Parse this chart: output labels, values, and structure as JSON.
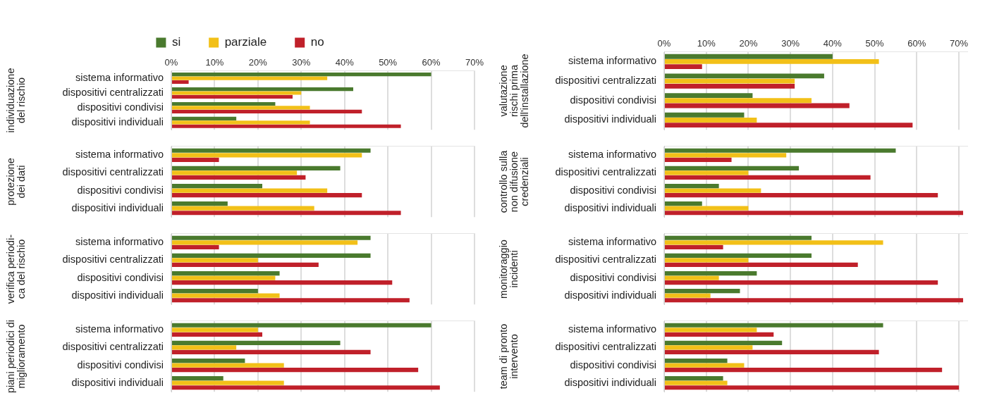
{
  "chart_data": [
    {
      "type": "bar",
      "orientation": "horizontal",
      "ylabel": "individuazione\ndel rischio",
      "categories": [
        "sistema informativo",
        "dispositivi centralizzati",
        "dispositivi condivisi",
        "dispositivi individuali"
      ],
      "series": [
        {
          "name": "si",
          "color": "#4a7a2e",
          "values": [
            60,
            42,
            24,
            15
          ]
        },
        {
          "name": "parziale",
          "color": "#f2c018",
          "values": [
            36,
            30,
            32,
            32
          ]
        },
        {
          "name": "no",
          "color": "#c0202a",
          "values": [
            4,
            28,
            44,
            53
          ]
        }
      ],
      "xlim": [
        0,
        70
      ],
      "xticks": [
        {
          "value": 0,
          "label": "0%"
        },
        {
          "value": 10,
          "label": "10%"
        },
        {
          "value": 20,
          "label": "20%"
        },
        {
          "value": 30,
          "label": "30%"
        },
        {
          "value": 40,
          "label": "40%"
        },
        {
          "value": 50,
          "label": "50%"
        },
        {
          "value": 60,
          "label": "60%"
        },
        {
          "value": 70,
          "label": "70%"
        }
      ],
      "grid": "x",
      "legend": "top"
    },
    {
      "type": "bar",
      "orientation": "horizontal",
      "ylabel": "protezione\ndei dati",
      "categories": [
        "sistema informativo",
        "dispositivi centralizzati",
        "dispositivi condivisi",
        "dispositivi individuali"
      ],
      "series": [
        {
          "color": "#4a7a2e",
          "values": [
            46,
            39,
            21,
            13
          ]
        },
        {
          "color": "#f2c018",
          "values": [
            44,
            29,
            36,
            33
          ]
        },
        {
          "color": "#c0202a",
          "values": [
            11,
            31,
            44,
            53
          ]
        }
      ],
      "xlim": [
        0,
        70
      ],
      "xticks": [
        0,
        10,
        20,
        30,
        40,
        50,
        60,
        70
      ],
      "grid": "x",
      "tick_labels": "y"
    },
    {
      "type": "bar",
      "orientation": "horizontal",
      "ylabel": "verifica periodi-\nca del rischio",
      "categories": [
        "sistema informativo",
        "dispositivi centralizzati",
        "dispositivi condivisi",
        "dispositivi individuali"
      ],
      "series": [
        {
          "color": "#4a7a2e",
          "values": [
            46,
            46,
            25,
            20
          ]
        },
        {
          "color": "#f2c018",
          "values": [
            43,
            20,
            24,
            25
          ]
        },
        {
          "color": "#c0202a",
          "values": [
            11,
            34,
            51,
            55
          ]
        }
      ],
      "xlim": [
        0,
        70
      ],
      "xticks": [
        0,
        10,
        20,
        30,
        40,
        50,
        60,
        70
      ],
      "grid": "x",
      "tick_labels": "y"
    },
    {
      "type": "bar",
      "orientation": "horizontal",
      "ylabel": "piani periodici di\nmiglioramento",
      "categories": [
        "sistema informativo",
        "dispositivi centralizzati",
        "dispositivi condivisi",
        "dispositivi individuali"
      ],
      "series": [
        {
          "color": "#4a7a2e",
          "values": [
            60,
            39,
            17,
            12
          ]
        },
        {
          "color": "#f2c018",
          "values": [
            20,
            15,
            26,
            26
          ]
        },
        {
          "color": "#c0202a",
          "values": [
            21,
            46,
            57,
            62
          ]
        }
      ],
      "xlim": [
        0,
        70
      ],
      "xticks": [
        0,
        10,
        20,
        30,
        40,
        50,
        60,
        70
      ],
      "grid": "x",
      "tick_labels": "y"
    },
    {
      "type": "bar",
      "orientation": "horizontal",
      "ylabel": "valutazione\nrischi prima\ndell'installazione",
      "categories": [
        "sistema informativo",
        "dispositivi centralizzati",
        "dispositivi condivisi",
        "dispositivi individuali"
      ],
      "series": [
        {
          "color": "#4a7a2e",
          "values": [
            40,
            38,
            21,
            19
          ]
        },
        {
          "color": "#f2c018",
          "values": [
            51,
            31,
            35,
            22
          ]
        },
        {
          "color": "#c0202a",
          "values": [
            9,
            31,
            44,
            59
          ]
        }
      ],
      "xlim": [
        0,
        72
      ],
      "xticks": [
        {
          "value": 0,
          "label": "0%"
        },
        {
          "value": 10,
          "label": "10%"
        },
        {
          "value": 20,
          "label": "20%"
        },
        {
          "value": 30,
          "label": "30%"
        },
        {
          "value": 40,
          "label": "40%"
        },
        {
          "value": 50,
          "label": "50%"
        },
        {
          "value": 60,
          "label": "60%"
        },
        {
          "value": 70,
          "label": "70%"
        }
      ],
      "grid": "x"
    },
    {
      "type": "bar",
      "orientation": "horizontal",
      "ylabel": "controllo sulla\nnon difusione\ncredenziali",
      "categories": [
        "sistema informativo",
        "dispositivi centralizzati",
        "dispositivi condivisi",
        "dispositivi individuali"
      ],
      "series": [
        {
          "color": "#4a7a2e",
          "values": [
            55,
            32,
            13,
            9
          ]
        },
        {
          "color": "#f2c018",
          "values": [
            29,
            20,
            23,
            20
          ]
        },
        {
          "color": "#c0202a",
          "values": [
            16,
            49,
            65,
            71
          ]
        }
      ],
      "xlim": [
        0,
        72
      ],
      "xticks": [
        0,
        10,
        20,
        30,
        40,
        50,
        60,
        70
      ],
      "grid": "x",
      "tick_labels": "y"
    },
    {
      "type": "bar",
      "orientation": "horizontal",
      "ylabel": "monitoraggio\nincidenti",
      "categories": [
        "sistema informativo",
        "dispositivi centralizzati",
        "dispositivi condivisi",
        "dispositivi individuali"
      ],
      "series": [
        {
          "color": "#4a7a2e",
          "values": [
            35,
            35,
            22,
            18
          ]
        },
        {
          "color": "#f2c018",
          "values": [
            52,
            20,
            13,
            11
          ]
        },
        {
          "color": "#c0202a",
          "values": [
            14,
            46,
            65,
            71
          ]
        }
      ],
      "xlim": [
        0,
        72
      ],
      "xticks": [
        0,
        10,
        20,
        30,
        40,
        50,
        60,
        70
      ],
      "grid": "x",
      "tick_labels": "y"
    },
    {
      "type": "bar",
      "orientation": "horizontal",
      "ylabel": "team di pronto\nintervento",
      "categories": [
        "sistema informativo",
        "dispositivi centralizzati",
        "dispositivi condivisi",
        "dispositivi individuali"
      ],
      "series": [
        {
          "color": "#4a7a2e",
          "values": [
            52,
            28,
            15,
            14
          ]
        },
        {
          "color": "#f2c018",
          "values": [
            22,
            21,
            19,
            15
          ]
        },
        {
          "color": "#c0202a",
          "values": [
            26,
            51,
            66,
            70
          ]
        }
      ],
      "xlim": [
        0,
        72
      ],
      "xticks": [
        0,
        10,
        20,
        30,
        40,
        50,
        60,
        70
      ],
      "grid": "x",
      "tick_labels": "y"
    }
  ]
}
